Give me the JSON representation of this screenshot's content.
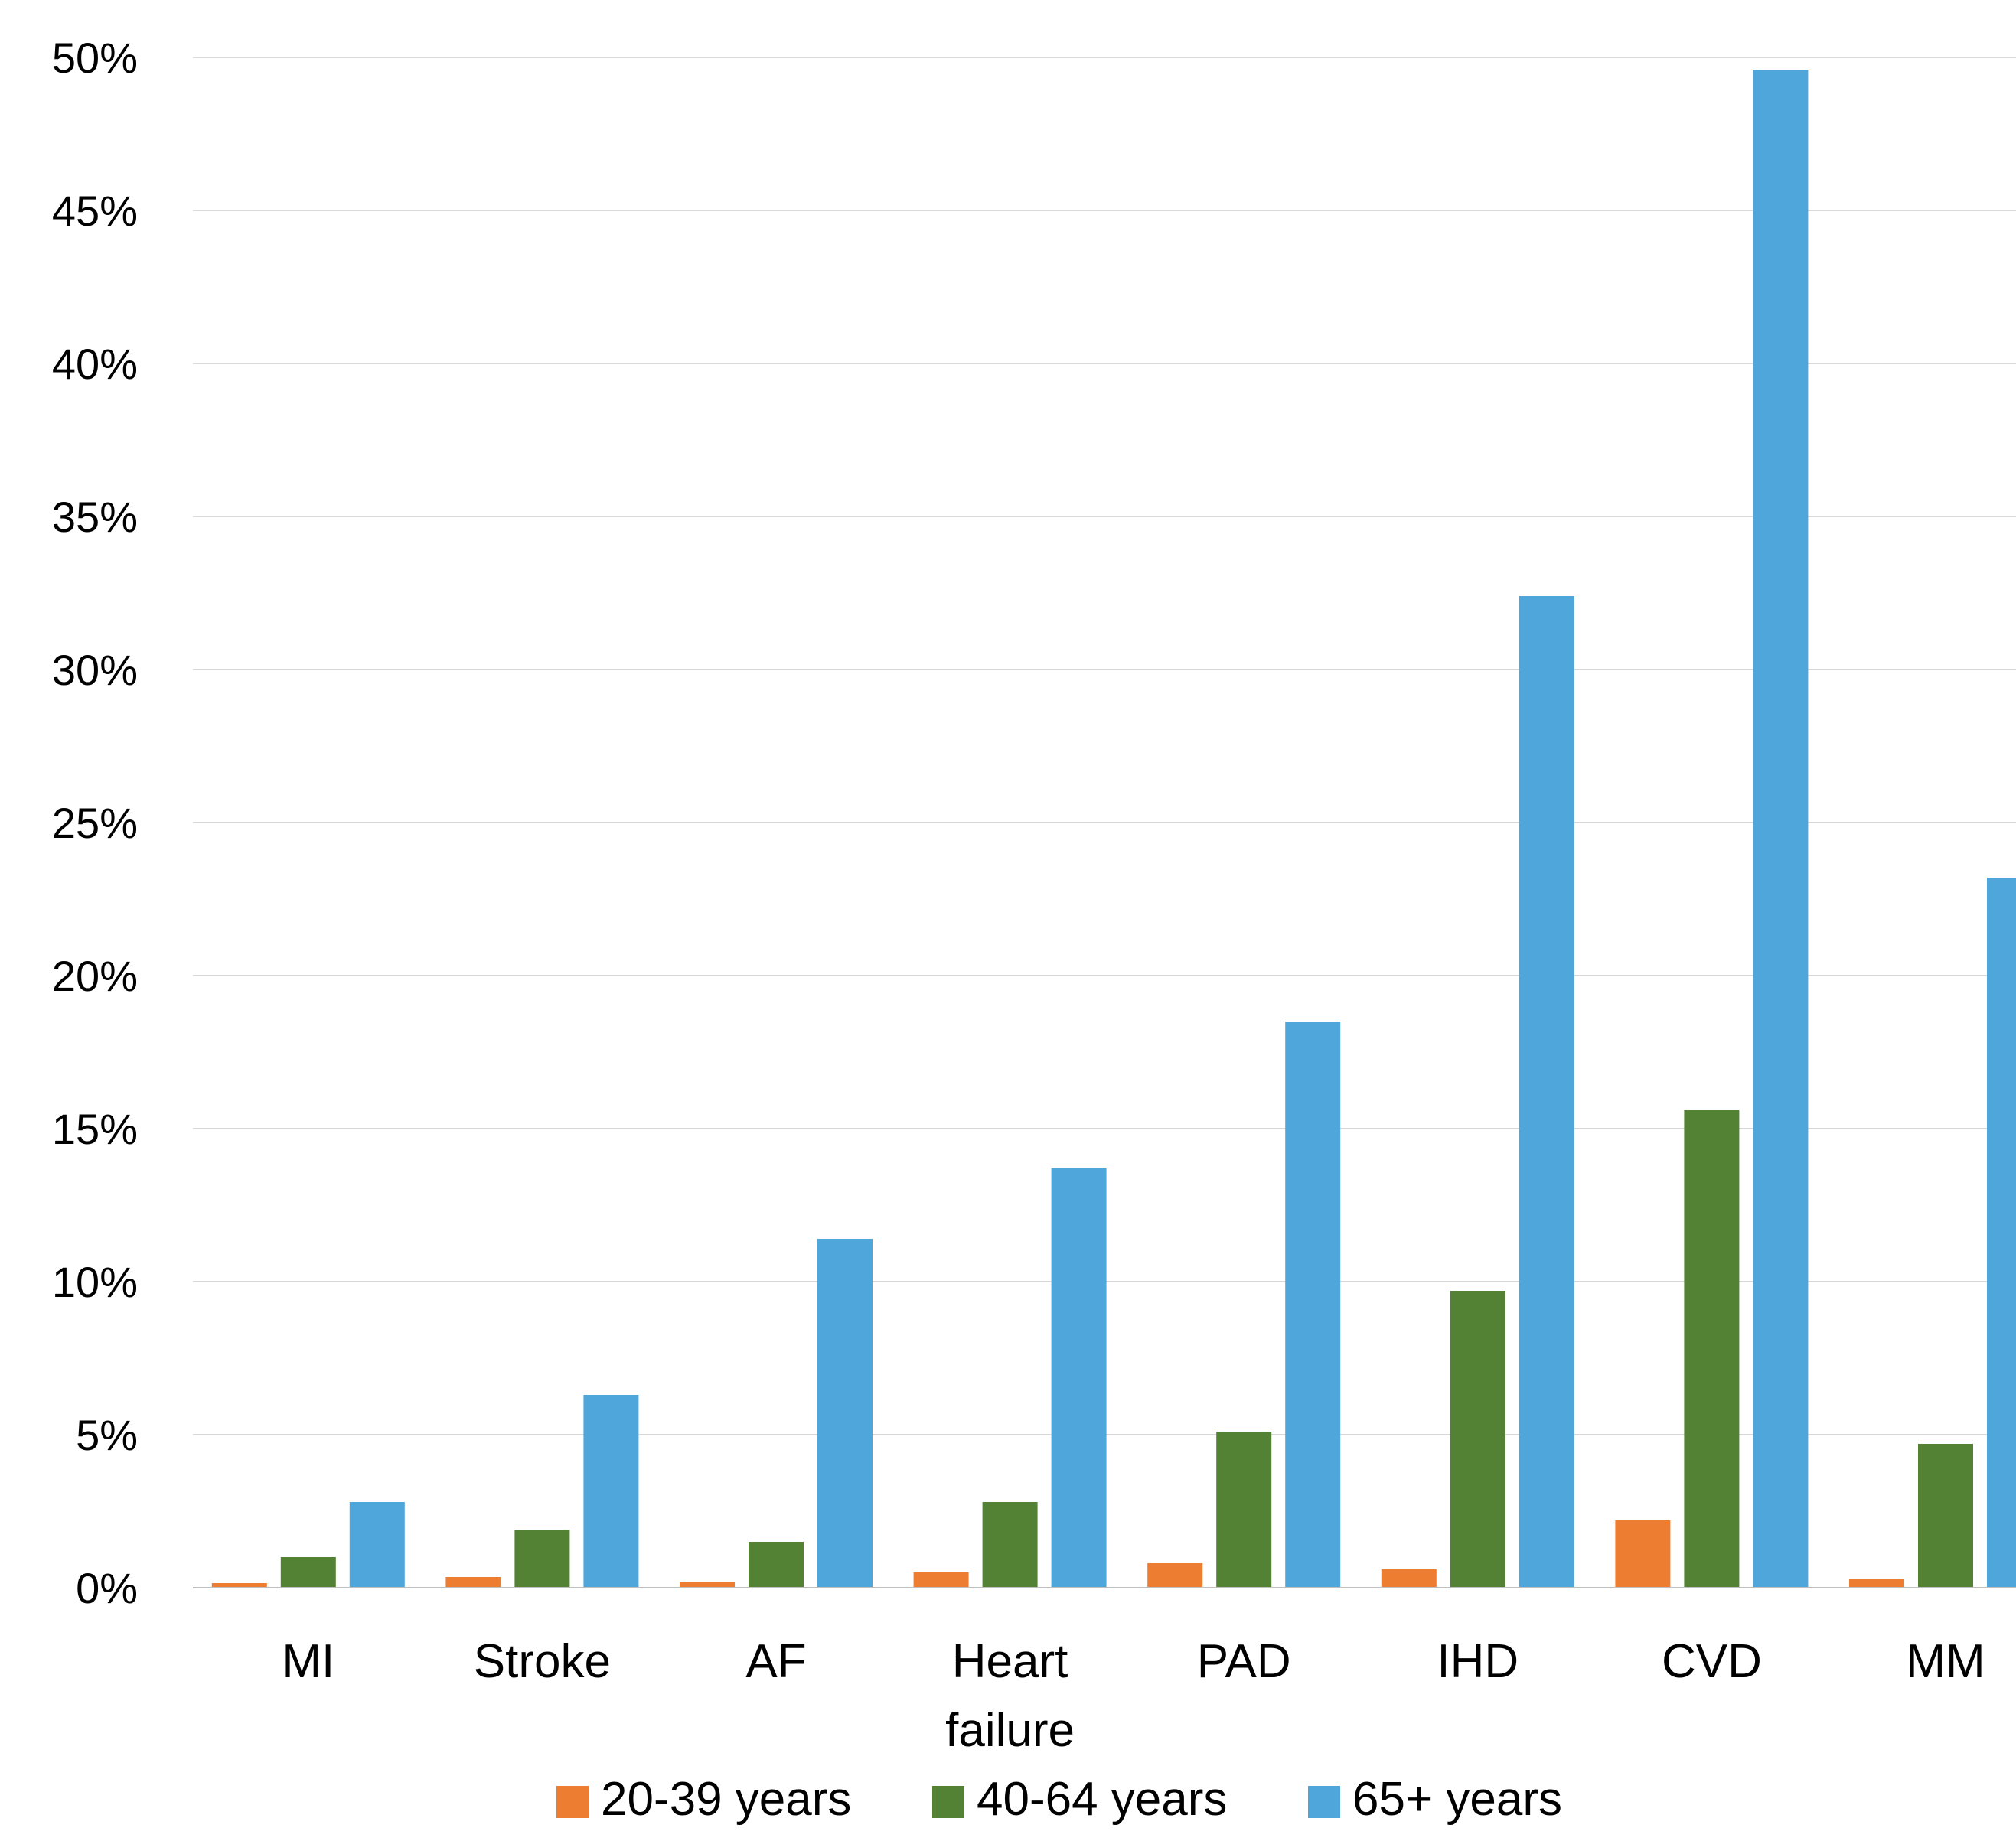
{
  "chart_data": {
    "type": "bar",
    "categories": [
      [
        "MI"
      ],
      [
        "Stroke"
      ],
      [
        "AF"
      ],
      [
        "Heart",
        "failure"
      ],
      [
        "PAD"
      ],
      [
        "IHD"
      ],
      [
        "CVD"
      ],
      [
        "MM"
      ]
    ],
    "series": [
      {
        "name": "20-39 years",
        "color": "#ED7D31",
        "values": [
          0.15,
          0.35,
          0.2,
          0.5,
          0.8,
          0.6,
          2.2,
          0.3
        ]
      },
      {
        "name": "40-64 years",
        "color": "#548235",
        "values": [
          1.0,
          1.9,
          1.5,
          2.8,
          5.1,
          9.7,
          15.6,
          4.7
        ]
      },
      {
        "name": "65+ years",
        "color": "#4FA6DB",
        "values": [
          2.8,
          6.3,
          11.4,
          13.7,
          18.5,
          32.4,
          49.6,
          23.2
        ]
      }
    ],
    "yticks": [
      "0%",
      "5%",
      "10%",
      "15%",
      "20%",
      "25%",
      "30%",
      "35%",
      "40%",
      "45%",
      "50%"
    ],
    "ylim": [
      0,
      50
    ],
    "grid": true,
    "legend": "bottom",
    "title": "",
    "xlabel": "",
    "ylabel": ""
  }
}
